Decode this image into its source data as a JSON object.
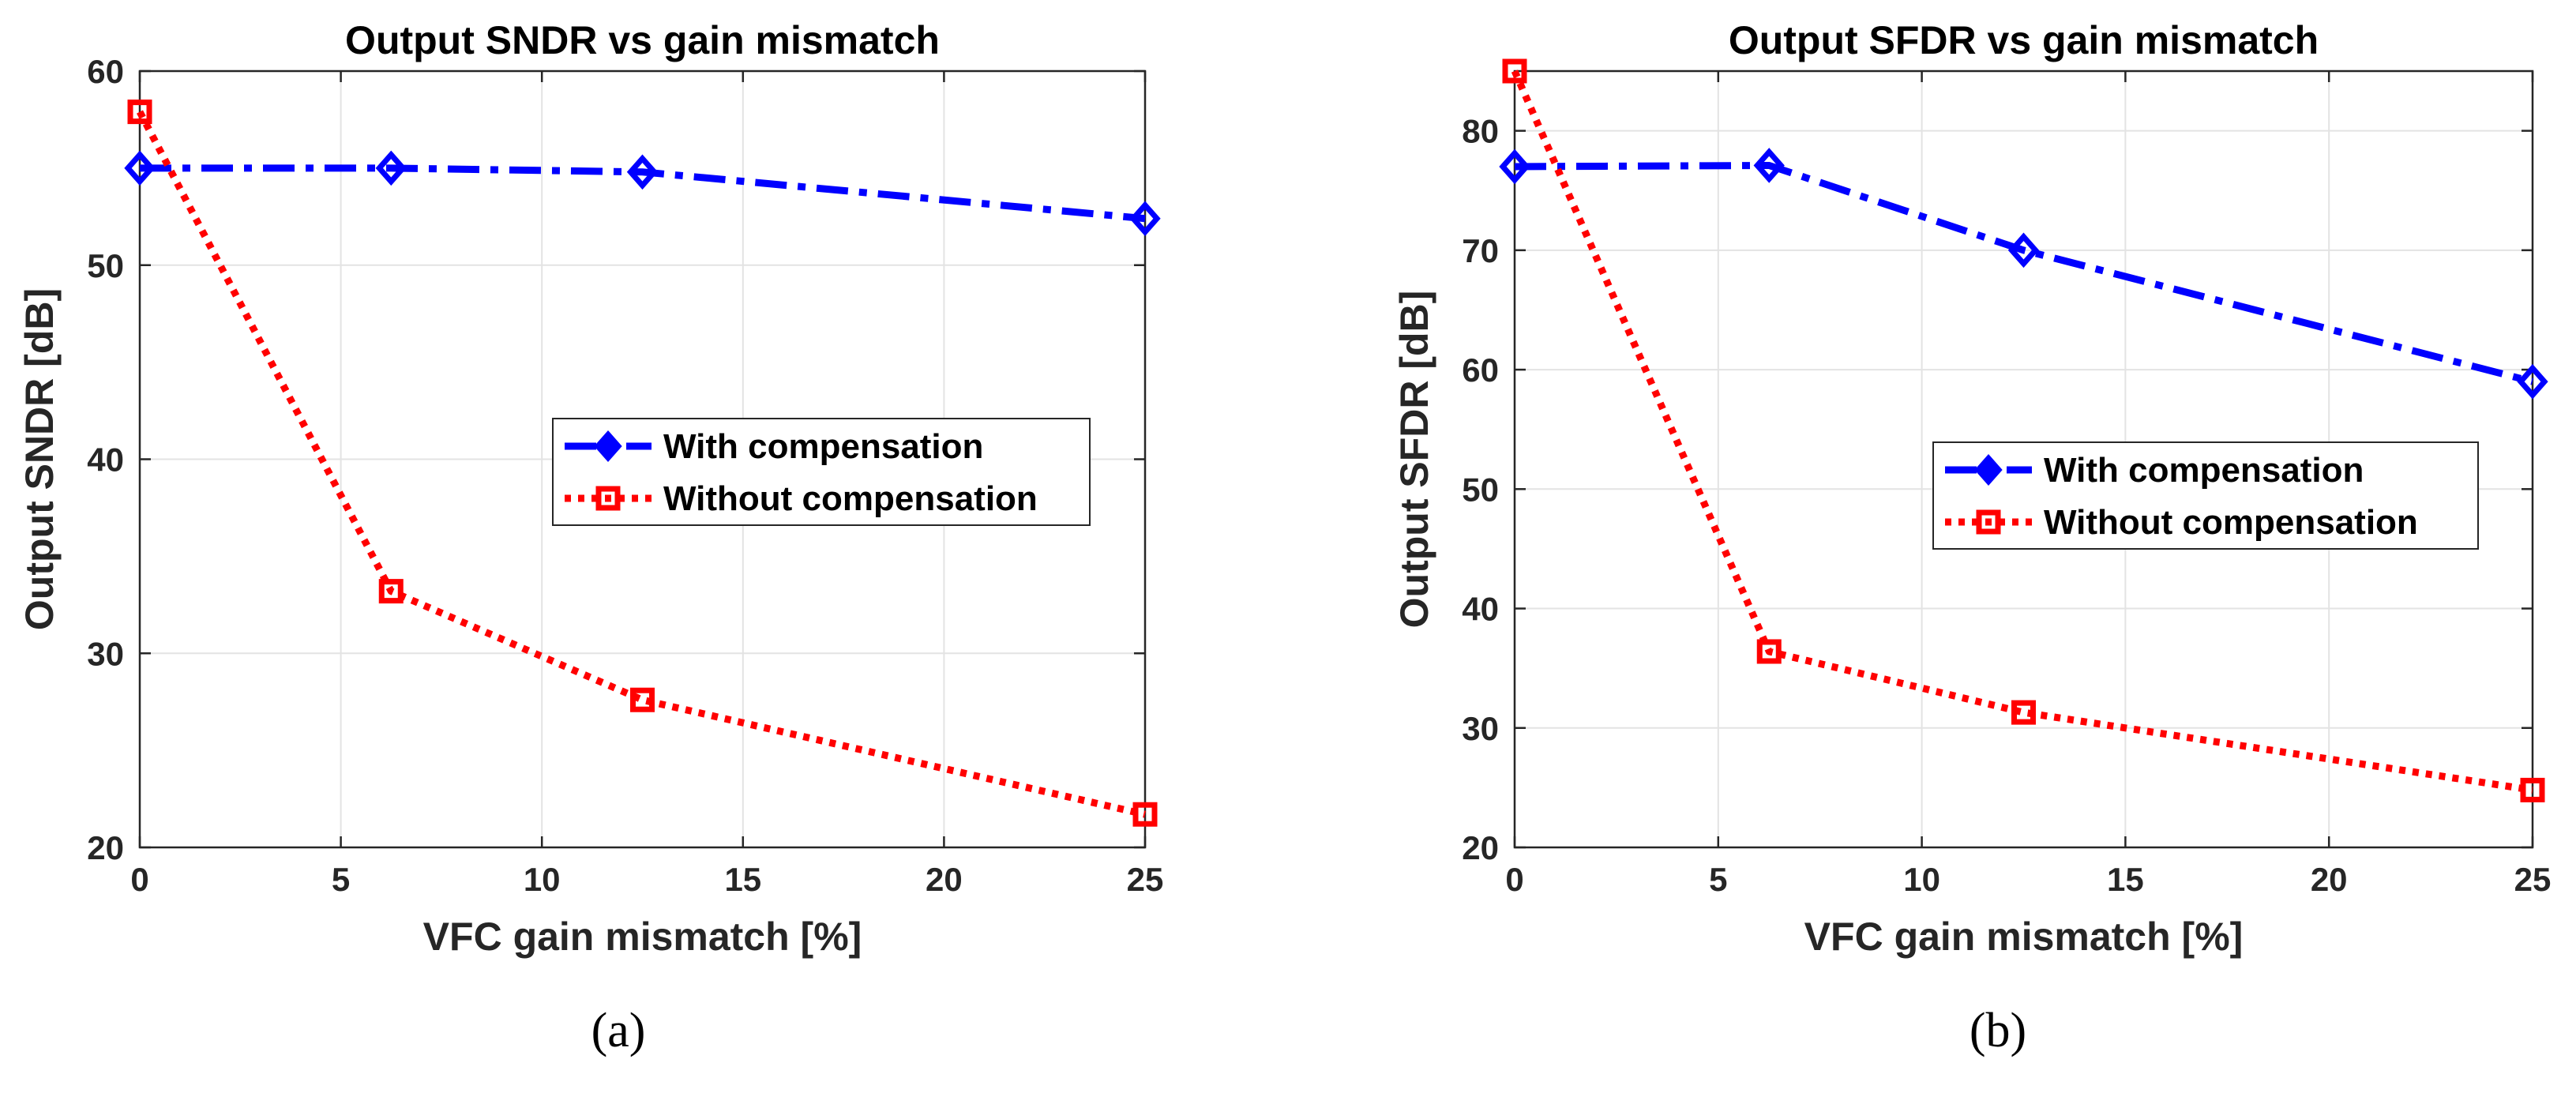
{
  "chart_data": [
    {
      "type": "line",
      "title": "Output SNDR vs gain mismatch",
      "xlabel": "VFC gain mismatch [%]",
      "ylabel": "Output SNDR [dB]",
      "xlim": [
        0,
        25
      ],
      "ylim": [
        20,
        60
      ],
      "xticks": [
        0,
        5,
        10,
        15,
        20,
        25
      ],
      "yticks": [
        20,
        30,
        40,
        50,
        60
      ],
      "grid": true,
      "legend_position": "center-right",
      "x": [
        0,
        6.25,
        12.5,
        25
      ],
      "series": [
        {
          "name": "With compensation",
          "values": [
            55,
            55,
            54.8,
            52.4
          ],
          "color": "#0000ff",
          "marker": "diamond",
          "line": "dash-dot"
        },
        {
          "name": "Without compensation",
          "values": [
            57.9,
            33.2,
            27.6,
            21.7
          ],
          "color": "#ff0000",
          "marker": "square",
          "line": "dotted"
        }
      ],
      "caption": "(a)"
    },
    {
      "type": "line",
      "title": "Output SFDR vs gain mismatch",
      "xlabel": "VFC gain mismatch [%]",
      "ylabel": "Output SFDR [dB]",
      "xlim": [
        0,
        25
      ],
      "ylim": [
        20,
        85
      ],
      "xticks": [
        0,
        5,
        10,
        15,
        20,
        25
      ],
      "yticks": [
        20,
        30,
        40,
        50,
        60,
        70,
        80
      ],
      "grid": true,
      "legend_position": "center-right",
      "x": [
        0,
        6.25,
        12.5,
        25
      ],
      "series": [
        {
          "name": "With compensation",
          "values": [
            77,
            77.1,
            70,
            59
          ],
          "color": "#0000ff",
          "marker": "diamond",
          "line": "dash-dot"
        },
        {
          "name": "Without compensation",
          "values": [
            85,
            36.4,
            31.3,
            24.8
          ],
          "color": "#ff0000",
          "marker": "square",
          "line": "dotted"
        }
      ],
      "caption": "(b)"
    }
  ]
}
